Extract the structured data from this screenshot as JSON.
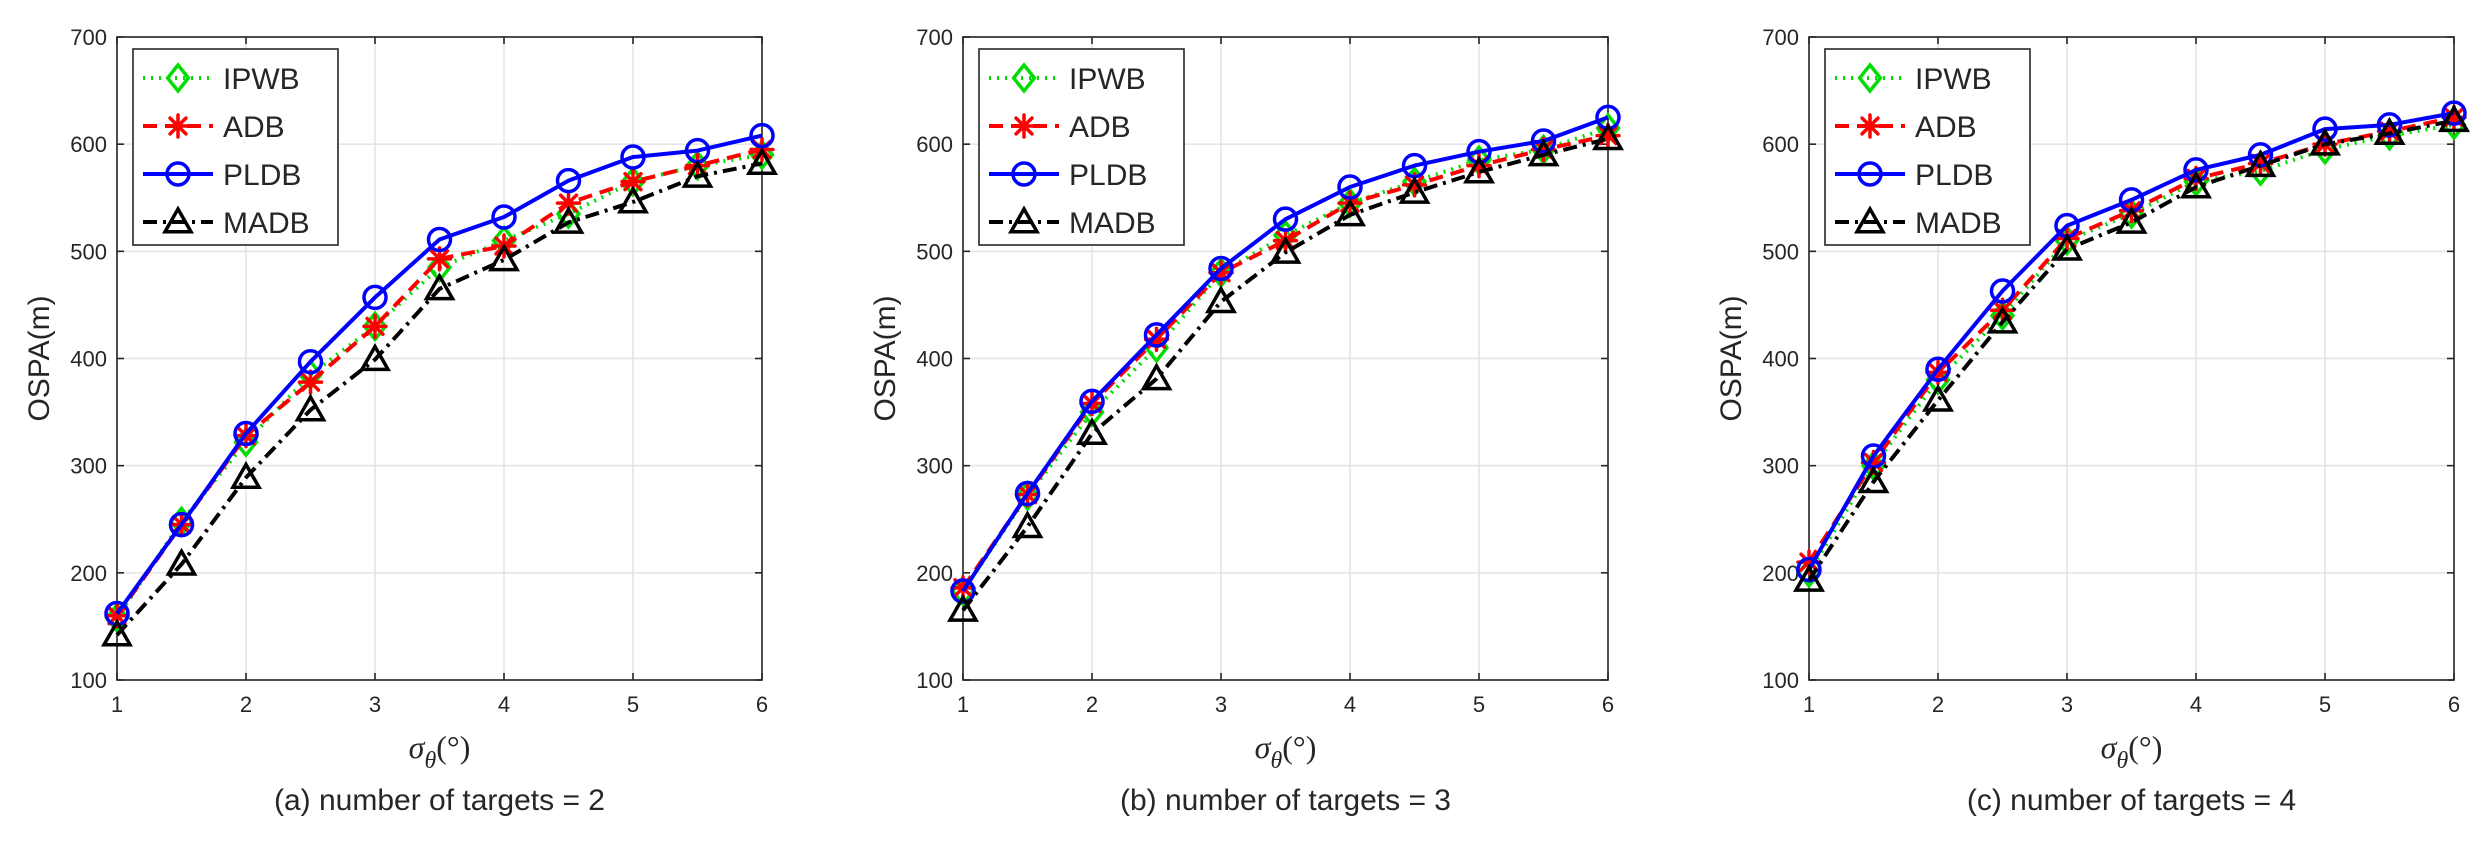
{
  "chart_data": [
    {
      "type": "line",
      "caption": "(a) number of targets = 2",
      "xlabel_symbol": "σ",
      "xlabel_sub": "θ",
      "xlabel_unit": "(°)",
      "ylabel": "OSPA(m)",
      "xlim": [
        1,
        6
      ],
      "ylim": [
        100,
        700
      ],
      "xticks": [
        "1",
        "2",
        "3",
        "4",
        "5",
        "6"
      ],
      "yticks": [
        "100",
        "200",
        "300",
        "400",
        "500",
        "600",
        "700"
      ],
      "grid": true,
      "legend_position": "top-left",
      "x": [
        1,
        1.5,
        2,
        2.5,
        3,
        3.5,
        4,
        4.5,
        5,
        5.5,
        6
      ],
      "series": [
        {
          "name": "IPWB",
          "values": [
            158,
            248,
            322,
            385,
            430,
            485,
            510,
            535,
            565,
            580,
            590
          ]
        },
        {
          "name": "ADB",
          "values": [
            160,
            245,
            328,
            378,
            430,
            493,
            505,
            545,
            565,
            580,
            595
          ]
        },
        {
          "name": "PLDB",
          "values": [
            162,
            245,
            330,
            397,
            457,
            511,
            532,
            566,
            588,
            594,
            608
          ]
        },
        {
          "name": "MADB",
          "values": [
            142,
            208,
            289,
            352,
            399,
            465,
            492,
            527,
            546,
            570,
            582
          ]
        }
      ]
    },
    {
      "type": "line",
      "caption": "(b) number of targets = 3",
      "xlabel_symbol": "σ",
      "xlabel_sub": "θ",
      "xlabel_unit": "(°)",
      "ylabel": "OSPA(m)",
      "xlim": [
        1,
        6
      ],
      "ylim": [
        100,
        700
      ],
      "xticks": [
        "1",
        "2",
        "3",
        "4",
        "5",
        "6"
      ],
      "yticks": [
        "100",
        "200",
        "300",
        "400",
        "500",
        "600",
        "700"
      ],
      "grid": true,
      "legend_position": "top-left",
      "x": [
        1,
        1.5,
        2,
        2.5,
        3,
        3.5,
        4,
        4.5,
        5,
        5.5,
        6
      ],
      "series": [
        {
          "name": "IPWB",
          "values": [
            183,
            272,
            350,
            410,
            480,
            515,
            545,
            565,
            585,
            595,
            615
          ]
        },
        {
          "name": "ADB",
          "values": [
            186,
            273,
            358,
            418,
            480,
            510,
            545,
            562,
            580,
            595,
            608
          ]
        },
        {
          "name": "PLDB",
          "values": [
            183,
            274,
            360,
            422,
            484,
            530,
            560,
            580,
            593,
            603,
            625
          ]
        },
        {
          "name": "MADB",
          "values": [
            165,
            243,
            330,
            381,
            453,
            499,
            534,
            555,
            574,
            590,
            605
          ]
        }
      ]
    },
    {
      "type": "line",
      "caption": "(c) number of targets = 4",
      "xlabel_symbol": "σ",
      "xlabel_sub": "θ",
      "xlabel_unit": "(°)",
      "ylabel": "OSPA(m)",
      "xlim": [
        1,
        6
      ],
      "ylim": [
        100,
        700
      ],
      "xticks": [
        "1",
        "2",
        "3",
        "4",
        "5",
        "6"
      ],
      "yticks": [
        "100",
        "200",
        "300",
        "400",
        "500",
        "600",
        "700"
      ],
      "grid": true,
      "legend_position": "top-left",
      "x": [
        1,
        1.5,
        2,
        2.5,
        3,
        3.5,
        4,
        4.5,
        5,
        5.5,
        6
      ],
      "series": [
        {
          "name": "IPWB",
          "values": [
            200,
            300,
            380,
            440,
            510,
            535,
            565,
            575,
            595,
            608,
            618
          ]
        },
        {
          "name": "ADB",
          "values": [
            210,
            303,
            387,
            445,
            512,
            538,
            568,
            582,
            600,
            612,
            625
          ]
        },
        {
          "name": "PLDB",
          "values": [
            203,
            309,
            390,
            463,
            524,
            548,
            576,
            590,
            614,
            618,
            629
          ]
        },
        {
          "name": "MADB",
          "values": [
            193,
            285,
            361,
            434,
            502,
            527,
            560,
            580,
            600,
            610,
            622
          ]
        }
      ]
    }
  ],
  "style": {
    "colors": {
      "IPWB": "#00dd00",
      "ADB": "#ff0000",
      "PLDB": "#0000ff",
      "MADB": "#000000"
    },
    "markers": {
      "IPWB": "diamond",
      "ADB": "asterisk",
      "PLDB": "circle",
      "MADB": "triangle"
    },
    "dashes": {
      "IPWB": "dotted",
      "ADB": "dashed",
      "PLDB": "solid",
      "MADB": "dash-dot"
    },
    "grid_color": "#e3e3e3",
    "axis_color": "#262626"
  }
}
